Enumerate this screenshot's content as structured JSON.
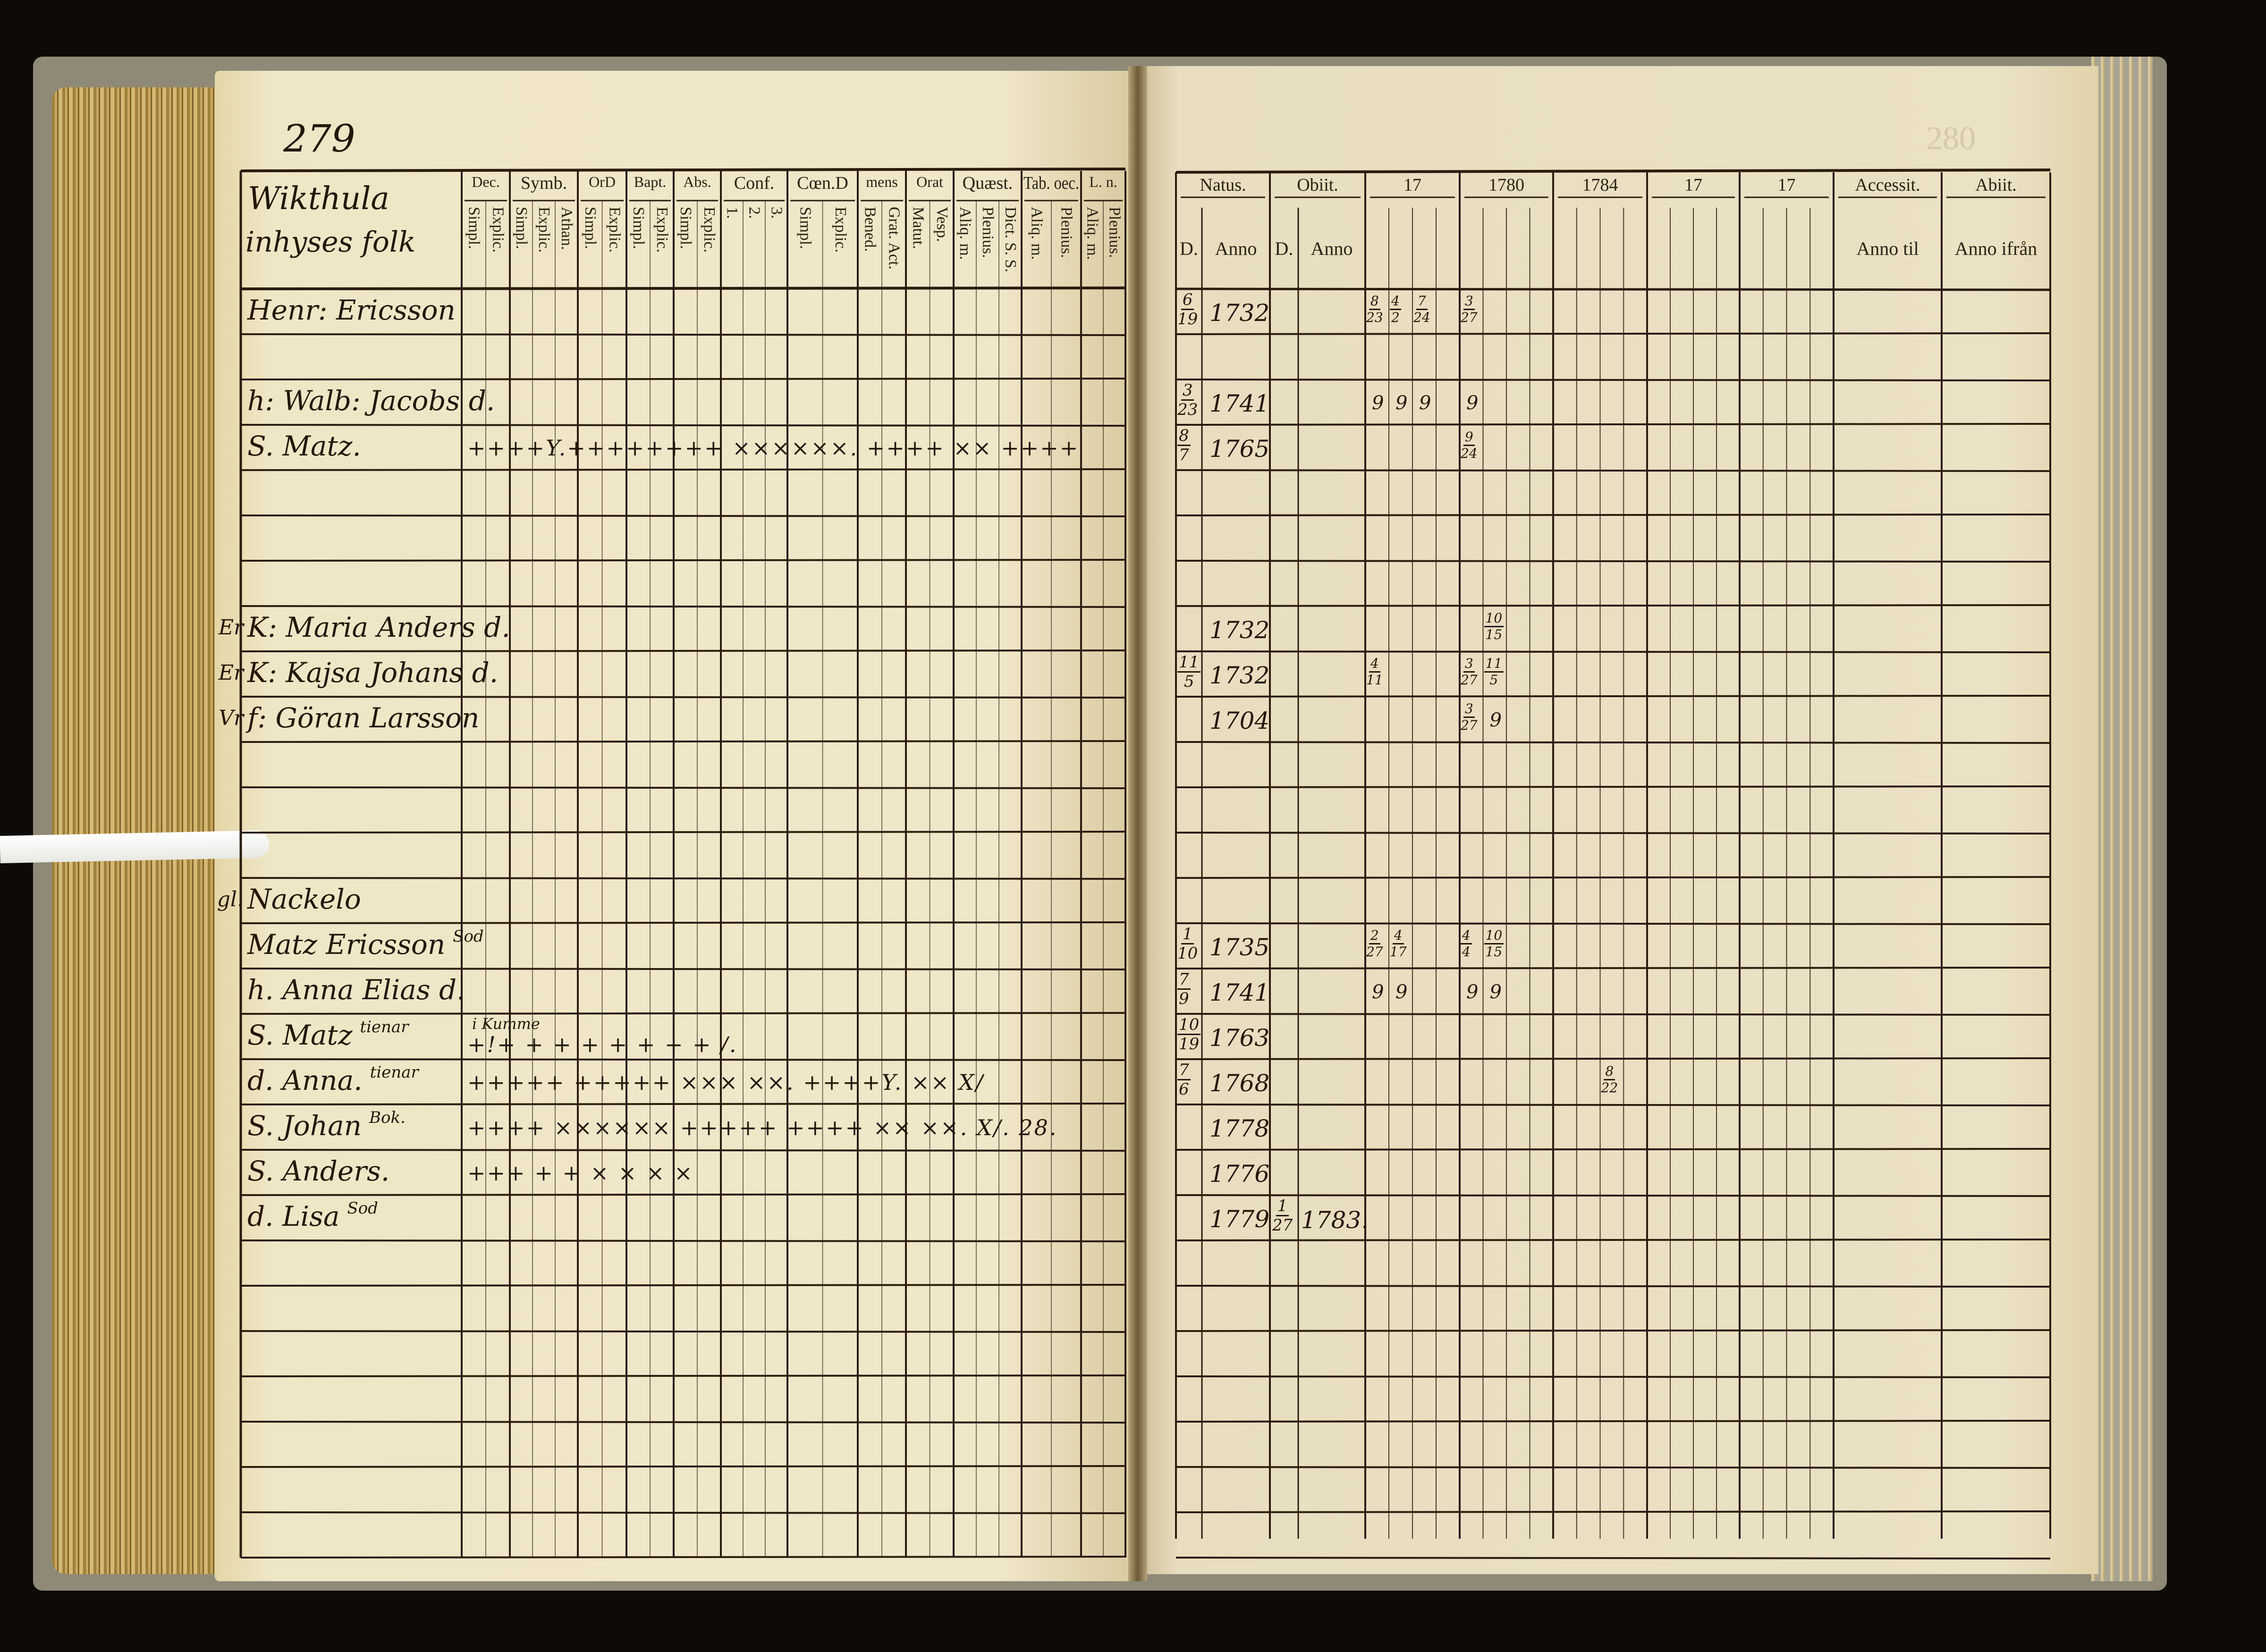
{
  "left_page": {
    "page_number": "279",
    "village_line1": "Wikthula",
    "village_line2": "inhyses folk",
    "headers": [
      {
        "title": "Dec.",
        "subs": [
          "Simpl.",
          "Explic."
        ]
      },
      {
        "title": "Symb.",
        "subs": [
          "Simpl.",
          "Explic.",
          "Athan."
        ]
      },
      {
        "title": "OrD",
        "subs": [
          "Simpl.",
          "Explic."
        ]
      },
      {
        "title": "Bapt.",
        "subs": [
          "Simpl.",
          "Explic."
        ]
      },
      {
        "title": "Abs.",
        "subs": [
          "Simpl.",
          "Explic."
        ]
      },
      {
        "title": "Conf.",
        "subs": [
          "1.",
          "2.",
          "3."
        ]
      },
      {
        "title": "Cœn.D",
        "subs": [
          "Simpl.",
          "Explic."
        ]
      },
      {
        "title": "mens",
        "subs": [
          "Bened.",
          "Grat. Act."
        ]
      },
      {
        "title": "Orat",
        "subs": [
          "Matut.",
          "Vesp."
        ]
      },
      {
        "title": "Quæst.",
        "subs": [
          "Aliq. m.",
          "Plenius.",
          "Dict. S. S."
        ]
      },
      {
        "title": "Tab. oec.",
        "subs": [
          "Aliq. m.",
          "Plenius."
        ]
      },
      {
        "title": "L. n.",
        "subs": [
          "Aliq. m.",
          "Plenius."
        ]
      }
    ]
  },
  "right_page": {
    "page_number": "280",
    "headers": [
      {
        "title": "Natus.",
        "subs": [
          "D.",
          "Anno"
        ]
      },
      {
        "title": "Obiit.",
        "subs": [
          "D.",
          "Anno"
        ]
      },
      {
        "title": "17",
        "subs": []
      },
      {
        "title": "1780",
        "subs": []
      },
      {
        "title": "1784",
        "subs": []
      },
      {
        "title": "17",
        "subs": []
      },
      {
        "title": "17",
        "subs": []
      },
      {
        "title": "Accessit.",
        "subs": [
          "Anno til"
        ]
      },
      {
        "title": "Abiit.",
        "subs": [
          "Anno ifrån"
        ]
      }
    ]
  },
  "rows": [
    {
      "name": "Henr: Ericsson",
      "natus_d": {
        "n": "6",
        "d": "19"
      },
      "natus_anno": "1732",
      "entries": [
        {
          "col": 0,
          "sub": 0,
          "n": "8",
          "d": "23"
        },
        {
          "col": 0,
          "sub": 1,
          "n": "4",
          "d": "2"
        },
        {
          "col": 0,
          "sub": 2,
          "n": "7",
          "d": "24"
        },
        {
          "col": 1,
          "sub": 0,
          "n": "3",
          "d": "27"
        }
      ]
    },
    {},
    {
      "name": "h: Walb: Jacobs d.",
      "natus_d": {
        "n": "3",
        "d": "23"
      },
      "natus_anno": "1741",
      "entries": [
        {
          "col": 0,
          "sub": 0,
          "t": "9"
        },
        {
          "col": 0,
          "sub": 1,
          "t": "9"
        },
        {
          "col": 0,
          "sub": 2,
          "t": "9"
        },
        {
          "col": 1,
          "sub": 0,
          "t": "9"
        }
      ]
    },
    {
      "name": "S. Matz.",
      "marks": "++++Y.++++++++ ××××××. ++++ ×× ++++",
      "natus_d": {
        "n": "8",
        "d": "7"
      },
      "natus_anno": "1765",
      "entries": [
        {
          "col": 1,
          "sub": 0,
          "n": "9",
          "d": "24"
        }
      ]
    },
    {},
    {},
    {},
    {
      "margin": "Er",
      "name": "K: Maria Anders d.",
      "natus_anno": "1732",
      "entries": [
        {
          "col": 1,
          "sub": 1,
          "n": "10",
          "d": "15"
        }
      ]
    },
    {
      "margin": "Er",
      "name": "K: Kajsa Johans d.",
      "natus_d": {
        "n": "11",
        "d": "5"
      },
      "natus_anno": "1732",
      "entries": [
        {
          "col": 0,
          "sub": 0,
          "n": "4",
          "d": "11"
        },
        {
          "col": 1,
          "sub": 0,
          "n": "3",
          "d": "27"
        },
        {
          "col": 1,
          "sub": 1,
          "n": "11",
          "d": "5"
        }
      ]
    },
    {
      "margin": "Vr",
      "name": "f: Göran Larsson",
      "natus_anno": "1704",
      "entries": [
        {
          "col": 1,
          "sub": 0,
          "n": "3",
          "d": "27"
        },
        {
          "col": 1,
          "sub": 1,
          "t": "9"
        }
      ]
    },
    {},
    {},
    {},
    {
      "margin": "gl.",
      "name": "Nackelo"
    },
    {
      "name": "Matz Ericsson",
      "note": "Sod",
      "natus_d": {
        "n": "1",
        "d": "10"
      },
      "natus_anno": "1735",
      "entries": [
        {
          "col": 0,
          "sub": 0,
          "n": "2",
          "d": "27"
        },
        {
          "col": 0,
          "sub": 1,
          "n": "4",
          "d": "17"
        },
        {
          "col": 1,
          "sub": 0,
          "n": "4",
          "d": "4"
        },
        {
          "col": 1,
          "sub": 1,
          "n": "10",
          "d": "15"
        }
      ]
    },
    {
      "name": "h. Anna Elias d.",
      "natus_d": {
        "n": "7",
        "d": "9"
      },
      "natus_anno": "1741",
      "entries": [
        {
          "col": 0,
          "sub": 0,
          "t": "9"
        },
        {
          "col": 0,
          "sub": 1,
          "t": "9"
        },
        {
          "col": 1,
          "sub": 0,
          "t": "9"
        },
        {
          "col": 1,
          "sub": 1,
          "t": "9"
        }
      ]
    },
    {
      "name": "S. Matz",
      "note": "tienar",
      "above": "i Kumme",
      "marks": "+!+   +   +   +    + +   +   +              /.",
      "natus_d": {
        "n": "10",
        "d": "19"
      },
      "natus_anno": "1763"
    },
    {
      "name": "d. Anna.",
      "note": "tienar",
      "marks": "+++++ +++++ ××× ××. ++++Y.  ××  X/",
      "natus_d": {
        "n": "7",
        "d": "6"
      },
      "natus_anno": "1768",
      "entries": [
        {
          "col": 2,
          "sub": 2,
          "n": "8",
          "d": "22"
        }
      ]
    },
    {
      "name": "S. Johan",
      "note": "Bok.",
      "marks": "++++ ×××××× +++++ ++++ ×× ××. X/. 28.",
      "natus_anno": "1778"
    },
    {
      "name": "S. Anders.",
      "marks": "+++   +  +  ×     ×   ×  ×",
      "natus_anno": "1776"
    },
    {
      "name": "d. Lisa",
      "note": "Sod",
      "natus_anno": "1779",
      "obiit_d": {
        "n": "1",
        "d": "27"
      },
      "obiit_anno": "1783."
    },
    {},
    {},
    {},
    {},
    {},
    {},
    {}
  ]
}
